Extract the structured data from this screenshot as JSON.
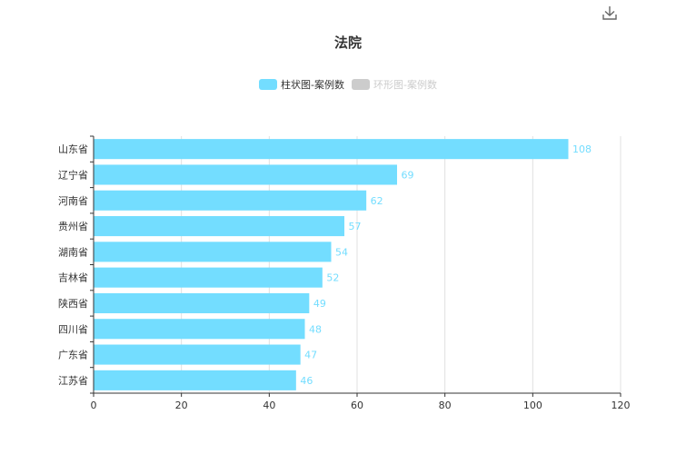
{
  "title": "法院",
  "icons": {
    "download": "download-icon"
  },
  "legend": [
    {
      "label": "柱状图-案例数",
      "color": "#73DDFF",
      "active": true
    },
    {
      "label": "环形图-案例数",
      "color": "#CCCCCC",
      "active": false
    }
  ],
  "chart_data": {
    "type": "bar",
    "orientation": "horizontal",
    "categories": [
      "山东省",
      "辽宁省",
      "河南省",
      "贵州省",
      "湖南省",
      "吉林省",
      "陕西省",
      "四川省",
      "广东省",
      "江苏省"
    ],
    "series": [
      {
        "name": "柱状图-案例数",
        "values": [
          108,
          69,
          62,
          57,
          54,
          52,
          49,
          48,
          47,
          46
        ]
      }
    ],
    "xlim": [
      0,
      120
    ],
    "xticks": [
      0,
      20,
      40,
      60,
      80,
      100,
      120
    ],
    "grid": true,
    "legend_position": "top-center",
    "bar_color": "#73DDFF",
    "label_color": "#73DDFF"
  }
}
